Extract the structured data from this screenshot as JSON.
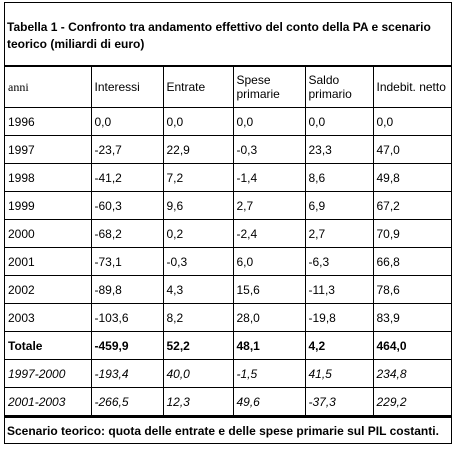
{
  "header": {
    "title": "Tabella 1 - Confronto tra andamento effettivo del conto della PA e scenario teorico (miliardi di euro)"
  },
  "table": {
    "columns": [
      "anni",
      "Interessi",
      "Entrate",
      "Spese primarie",
      "Saldo primario",
      "Indebit. netto"
    ],
    "rows": [
      [
        "1996",
        "0,0",
        "0,0",
        "0,0",
        "0,0",
        "0,0"
      ],
      [
        "1997",
        "-23,7",
        "22,9",
        "-0,3",
        "23,3",
        "47,0"
      ],
      [
        "1998",
        "-41,2",
        "7,2",
        "-1,4",
        "8,6",
        "49,8"
      ],
      [
        "1999",
        "-60,3",
        "9,6",
        "2,7",
        "6,9",
        "67,2"
      ],
      [
        "2000",
        "-68,2",
        "0,2",
        "-2,4",
        "2,7",
        "70,9"
      ],
      [
        "2001",
        "-73,1",
        "-0,3",
        "6,0",
        "-6,3",
        "66,8"
      ],
      [
        "2002",
        "-89,8",
        "4,3",
        "15,6",
        "-11,3",
        "78,6"
      ],
      [
        "2003",
        "-103,6",
        "8,2",
        "28,0",
        "-19,8",
        "83,9"
      ],
      [
        "Totale",
        "-459,9",
        "52,2",
        "48,1",
        "4,2",
        "464,0"
      ],
      [
        "1997-2000",
        "-193,4",
        "40,0",
        "-1,5",
        "41,5",
        "234,8"
      ],
      [
        "2001-2003",
        "-266,5",
        "12,3",
        "49,6",
        "-37,3",
        "229,2"
      ]
    ]
  },
  "footer": {
    "note": "Scenario teorico: quota delle entrate e delle spese primarie sul PIL costanti."
  }
}
